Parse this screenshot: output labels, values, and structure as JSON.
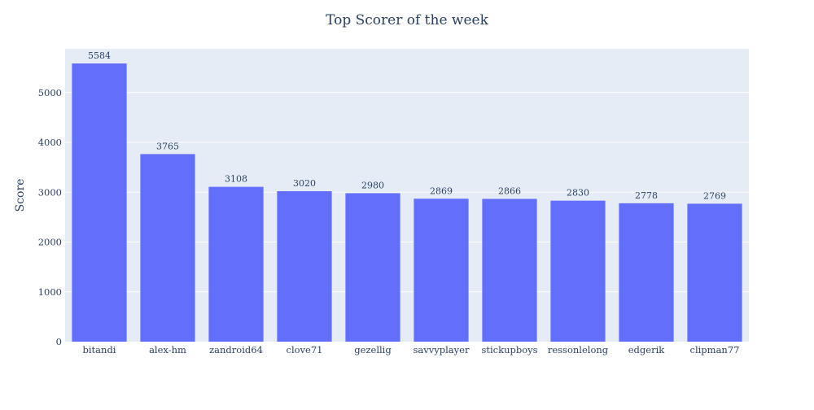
{
  "chart_data": {
    "type": "bar",
    "title": "Top Scorer of the week",
    "xlabel": "",
    "ylabel": "Score",
    "categories": [
      "bitandi",
      "alex-hm",
      "zandroid64",
      "clove71",
      "gezellig",
      "savvyplayer",
      "stickupboys",
      "ressonlelong",
      "edgerik",
      "clipman77"
    ],
    "values": [
      5584,
      3765,
      3108,
      3020,
      2980,
      2869,
      2866,
      2830,
      2778,
      2769
    ],
    "ylim": [
      0,
      5878
    ],
    "yticks": [
      0,
      1000,
      2000,
      3000,
      4000,
      5000
    ],
    "grid": true,
    "legend": "none",
    "colors": {
      "bar": "#636efa",
      "plot_bg": "#e5ecf6",
      "text": "#2a3f5f",
      "grid": "#ffffff"
    }
  }
}
